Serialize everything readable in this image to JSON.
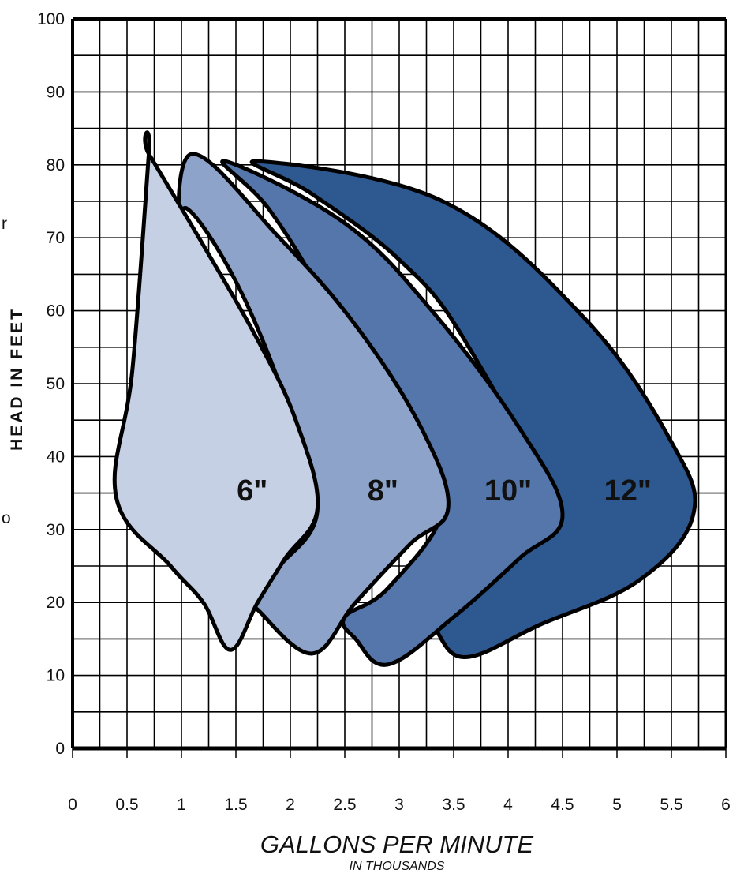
{
  "chart_data": {
    "type": "area",
    "xlabel": "GALLONS PER MINUTE",
    "xlabel_sub": "IN THOUSANDS",
    "ylabel": "HEAD IN FEET",
    "xlim": [
      0,
      6
    ],
    "ylim": [
      0,
      100
    ],
    "x_ticks": [
      "0",
      "0.5",
      "1",
      "1.5",
      "2",
      "2.5",
      "3",
      "3.5",
      "4",
      "4.5",
      "5",
      "5.5",
      "6"
    ],
    "y_ticks": [
      "0",
      "10",
      "20",
      "30",
      "40",
      "50",
      "60",
      "70",
      "80",
      "90",
      "100"
    ],
    "grid": true,
    "series": [
      {
        "name": "12\"",
        "color": "#2e5890",
        "label_pos": [
          5.1,
          34
        ],
        "outline": [
          [
            1.7,
            80.5
          ],
          [
            3.4,
            75
          ],
          [
            4.7,
            59
          ],
          [
            5.5,
            42
          ],
          [
            5.7,
            32
          ],
          [
            5.2,
            23
          ],
          [
            4.3,
            17
          ],
          [
            3.6,
            12.5
          ],
          [
            3.3,
            17
          ],
          [
            3.1,
            20
          ],
          [
            3.5,
            22
          ],
          [
            3.9,
            26
          ],
          [
            4.4,
            32
          ],
          [
            3.6,
            56
          ],
          [
            3.0,
            67
          ],
          [
            2.2,
            76
          ]
        ]
      },
      {
        "name": "10\"",
        "color": "#5576ab",
        "label_pos": [
          4.0,
          34
        ],
        "outline": [
          [
            1.4,
            80.5
          ],
          [
            2.5,
            72
          ],
          [
            3.3,
            60
          ],
          [
            4.1,
            44
          ],
          [
            4.5,
            32
          ],
          [
            4.1,
            26
          ],
          [
            3.5,
            18
          ],
          [
            2.9,
            11.5
          ],
          [
            2.6,
            15
          ],
          [
            2.5,
            18
          ],
          [
            2.9,
            22
          ],
          [
            3.4,
            33
          ],
          [
            3.0,
            42
          ],
          [
            2.3,
            62
          ],
          [
            1.8,
            74
          ]
        ]
      },
      {
        "name": "8\"",
        "color": "#8ea3c9",
        "label_pos": [
          2.85,
          34
        ],
        "outline": [
          [
            1.1,
            81.5
          ],
          [
            1.9,
            70
          ],
          [
            2.6,
            58
          ],
          [
            3.2,
            44
          ],
          [
            3.45,
            33
          ],
          [
            3.1,
            28
          ],
          [
            2.6,
            20
          ],
          [
            2.2,
            13
          ],
          [
            1.7,
            19
          ],
          [
            1.6,
            21
          ],
          [
            1.9,
            25
          ],
          [
            2.25,
            33
          ],
          [
            1.95,
            48
          ],
          [
            1.5,
            64
          ],
          [
            1.05,
            74
          ],
          [
            0.97,
            69
          ]
        ]
      },
      {
        "name": "6\"",
        "color": "#c5d0e4",
        "label_pos": [
          1.65,
          34
        ],
        "outline": [
          [
            0.7,
            81.5
          ],
          [
            1.2,
            69
          ],
          [
            1.7,
            56
          ],
          [
            2.05,
            45
          ],
          [
            2.25,
            33
          ],
          [
            1.95,
            26
          ],
          [
            1.7,
            20
          ],
          [
            1.45,
            13.5
          ],
          [
            1.2,
            20
          ],
          [
            0.9,
            25
          ],
          [
            0.4,
            34.5
          ],
          [
            0.55,
            52
          ],
          [
            0.7,
            81.5
          ]
        ]
      }
    ]
  },
  "left_fragments": [
    "r",
    "o"
  ]
}
